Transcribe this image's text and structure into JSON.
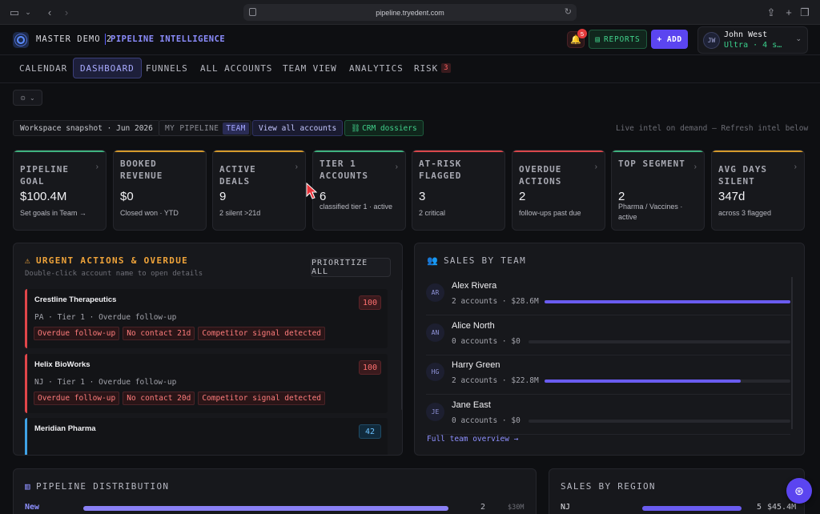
{
  "browser": {
    "url": "pipeline.tryedent.com"
  },
  "header": {
    "brand_primary": "MASTER DEMO 2",
    "brand_secondary": "PIPELINE INTELLIGENCE",
    "notification_count": "5",
    "reports_label": "REPORTS",
    "add_label": "+ ADD",
    "user": {
      "initials": "JW",
      "name": "John West",
      "plan": "Ultra · 4 s…"
    }
  },
  "nav": {
    "tabs": [
      "CALENDAR",
      "DASHBOARD",
      "FUNNELS",
      "ALL ACCOUNTS",
      "TEAM VIEW",
      "ANALYTICS",
      "RISK"
    ],
    "active": "DASHBOARD",
    "risk_count": "3"
  },
  "toolbar": {
    "snapshot": "Workspace snapshot · Jun 2026",
    "toggle_mine": "MY PIPELINE",
    "toggle_team": "TEAM",
    "view_all": "View all accounts",
    "crm": "CRM dossiers",
    "live_intel": "Live intel on demand — Refresh intel below"
  },
  "kpis": [
    {
      "label": "PIPELINE GOAL",
      "value": "$100.4M",
      "sub": "Set goals in Team →",
      "accent": "#3fb27f"
    },
    {
      "label": "BOOKED REVENUE",
      "value": "$0",
      "sub": "Closed won · YTD",
      "accent": "#d59a2c"
    },
    {
      "label": "ACTIVE DEALS",
      "value": "9",
      "sub": "2 silent >21d",
      "accent": "#d59a2c"
    },
    {
      "label": "TIER 1 ACCOUNTS",
      "value": "6",
      "sub": "classified tier 1 · active",
      "accent": "#3fb27f"
    },
    {
      "label": "AT-RISK FLAGGED",
      "value": "3",
      "sub": "2 critical",
      "accent": "#d9474b"
    },
    {
      "label": "OVERDUE ACTIONS",
      "value": "2",
      "sub": "follow-ups past due",
      "accent": "#d9474b"
    },
    {
      "label": "TOP SEGMENT",
      "value": "2",
      "sub": "Pharma / Vaccines · active",
      "accent": "#3fb27f"
    },
    {
      "label": "AVG DAYS SILENT",
      "value": "347d",
      "sub": "across 3 flagged",
      "accent": "#d59a2c"
    }
  ],
  "urgent": {
    "title": "URGENT ACTIONS & OVERDUE",
    "hint": "Double-click account name to open details",
    "prioritize": "PRIORITIZE ALL",
    "accounts": [
      {
        "name": "Crestline Therapeutics",
        "meta": "PA · Tier 1 · Overdue follow-up",
        "score": "100",
        "tags": [
          "Overdue follow-up",
          "No contact 21d",
          "Competitor signal detected"
        ]
      },
      {
        "name": "Helix BioWorks",
        "meta": "NJ · Tier 1 · Overdue follow-up",
        "score": "100",
        "tags": [
          "Overdue follow-up",
          "No contact 20d",
          "Competitor signal detected"
        ]
      },
      {
        "name": "Meridian Pharma",
        "meta": "",
        "score": "42",
        "tags": []
      }
    ]
  },
  "team": {
    "title": "SALES BY TEAM",
    "reps": [
      {
        "initials": "AR",
        "name": "Alex Rivera",
        "meta": "2 accounts · $28.6M",
        "share": 1.0
      },
      {
        "initials": "AN",
        "name": "Alice North",
        "meta": "0 accounts · $0",
        "share": 0
      },
      {
        "initials": "HG",
        "name": "Harry Green",
        "meta": "2 accounts · $22.8M",
        "share": 0.797
      },
      {
        "initials": "JE",
        "name": "Jane East",
        "meta": "0 accounts · $0",
        "share": 0
      }
    ],
    "link": "Full team overview →"
  },
  "distribution": {
    "title": "PIPELINE DISTRIBUTION",
    "rows": [
      {
        "stage": "New",
        "count": "2",
        "amount": "$30M",
        "share": 1.0
      }
    ]
  },
  "region": {
    "title": "SALES BY REGION",
    "rows": [
      {
        "region": "NJ",
        "count": "5",
        "amount": "$45.4M",
        "share": 1.0
      }
    ]
  }
}
